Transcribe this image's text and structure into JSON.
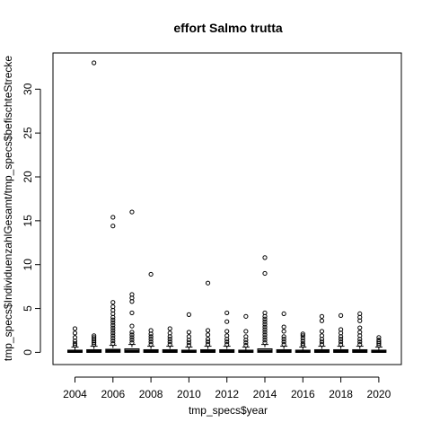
{
  "chart_data": {
    "type": "boxplot",
    "title": "effort Salmo trutta",
    "xlabel": "tmp_specs$year",
    "ylabel": "tmp_specs$IndividuenzahlGesamt/tmp_specs$befischteStrecke",
    "ylim": [
      -2,
      34
    ],
    "y_ticks": [
      0,
      5,
      10,
      15,
      20,
      25,
      30
    ],
    "x_tick_labels": [
      "2004",
      "2006",
      "2008",
      "2010",
      "2012",
      "2014",
      "2016",
      "2018",
      "2020"
    ],
    "categories": [
      "2004",
      "2005",
      "2006",
      "2007",
      "2008",
      "2009",
      "2010",
      "2011",
      "2012",
      "2013",
      "2014",
      "2015",
      "2016",
      "2017",
      "2018",
      "2019",
      "2020"
    ],
    "boxes": [
      {
        "year": "2004",
        "q1": 0.0,
        "median": 0.1,
        "q3": 0.25,
        "whisker_low": 0,
        "whisker_high": 0.6,
        "outliers": [
          0.8,
          1.0,
          1.3,
          1.7,
          2.2,
          2.7
        ]
      },
      {
        "year": "2005",
        "q1": 0.0,
        "median": 0.1,
        "q3": 0.3,
        "whisker_low": 0,
        "whisker_high": 0.7,
        "outliers": [
          0.9,
          1.1,
          1.3,
          1.5,
          1.7,
          1.9,
          33.0
        ]
      },
      {
        "year": "2006",
        "q1": 0.0,
        "median": 0.15,
        "q3": 0.35,
        "whisker_low": 0,
        "whisker_high": 0.8,
        "outliers": [
          1.0,
          1.3,
          1.6,
          1.9,
          2.2,
          2.5,
          2.8,
          3.1,
          3.4,
          3.7,
          4.0,
          4.4,
          4.8,
          5.2,
          5.7,
          14.4,
          15.4
        ]
      },
      {
        "year": "2007",
        "q1": 0.0,
        "median": 0.15,
        "q3": 0.4,
        "whisker_low": 0,
        "whisker_high": 0.9,
        "outliers": [
          1.1,
          1.4,
          1.7,
          2.0,
          2.3,
          3.0,
          4.5,
          5.8,
          6.2,
          6.6,
          16.0
        ]
      },
      {
        "year": "2008",
        "q1": 0.0,
        "median": 0.1,
        "q3": 0.3,
        "whisker_low": 0,
        "whisker_high": 0.7,
        "outliers": [
          0.9,
          1.2,
          1.5,
          1.8,
          2.1,
          2.5,
          8.9
        ]
      },
      {
        "year": "2009",
        "q1": 0.0,
        "median": 0.1,
        "q3": 0.3,
        "whisker_low": 0,
        "whisker_high": 0.7,
        "outliers": [
          0.9,
          1.2,
          1.5,
          1.8,
          2.2,
          2.7
        ]
      },
      {
        "year": "2010",
        "q1": 0.0,
        "median": 0.1,
        "q3": 0.25,
        "whisker_low": 0,
        "whisker_high": 0.6,
        "outliers": [
          0.8,
          1.1,
          1.4,
          1.8,
          2.3,
          4.3
        ]
      },
      {
        "year": "2011",
        "q1": 0.0,
        "median": 0.1,
        "q3": 0.3,
        "whisker_low": 0,
        "whisker_high": 0.7,
        "outliers": [
          0.9,
          1.2,
          1.5,
          2.0,
          2.5,
          7.9
        ]
      },
      {
        "year": "2012",
        "q1": 0.0,
        "median": 0.1,
        "q3": 0.3,
        "whisker_low": 0,
        "whisker_high": 0.7,
        "outliers": [
          0.9,
          1.2,
          1.5,
          1.9,
          2.4,
          3.5,
          4.5
        ]
      },
      {
        "year": "2013",
        "q1": 0.0,
        "median": 0.1,
        "q3": 0.25,
        "whisker_low": 0,
        "whisker_high": 0.6,
        "outliers": [
          0.8,
          1.1,
          1.4,
          1.8,
          2.4,
          4.1
        ]
      },
      {
        "year": "2014",
        "q1": 0.0,
        "median": 0.15,
        "q3": 0.4,
        "whisker_low": 0,
        "whisker_high": 0.9,
        "outliers": [
          1.1,
          1.4,
          1.7,
          2.0,
          2.3,
          2.6,
          2.9,
          3.2,
          3.5,
          3.8,
          4.1,
          4.5,
          9.0,
          10.8
        ]
      },
      {
        "year": "2015",
        "q1": 0.0,
        "median": 0.1,
        "q3": 0.3,
        "whisker_low": 0,
        "whisker_high": 0.7,
        "outliers": [
          0.9,
          1.2,
          1.5,
          1.8,
          2.4,
          2.9,
          4.4
        ]
      },
      {
        "year": "2016",
        "q1": 0.0,
        "median": 0.1,
        "q3": 0.25,
        "whisker_low": 0,
        "whisker_high": 0.6,
        "outliers": [
          0.8,
          1.0,
          1.3,
          1.6,
          1.9,
          2.1
        ]
      },
      {
        "year": "2017",
        "q1": 0.0,
        "median": 0.1,
        "q3": 0.3,
        "whisker_low": 0,
        "whisker_high": 0.7,
        "outliers": [
          0.9,
          1.2,
          1.5,
          1.9,
          2.4,
          3.6,
          4.1
        ]
      },
      {
        "year": "2018",
        "q1": 0.0,
        "median": 0.1,
        "q3": 0.3,
        "whisker_low": 0,
        "whisker_high": 0.7,
        "outliers": [
          0.9,
          1.2,
          1.5,
          1.8,
          2.2,
          2.6,
          4.2
        ]
      },
      {
        "year": "2019",
        "q1": 0.0,
        "median": 0.1,
        "q3": 0.3,
        "whisker_low": 0,
        "whisker_high": 0.7,
        "outliers": [
          0.9,
          1.2,
          1.5,
          1.9,
          2.3,
          2.8,
          3.6,
          4.0,
          4.4
        ]
      },
      {
        "year": "2020",
        "q1": 0.0,
        "median": 0.1,
        "q3": 0.25,
        "whisker_low": 0,
        "whisker_high": 0.6,
        "outliers": [
          0.8,
          1.0,
          1.2,
          1.4,
          1.7
        ]
      }
    ],
    "grid": false,
    "legend": "none"
  }
}
